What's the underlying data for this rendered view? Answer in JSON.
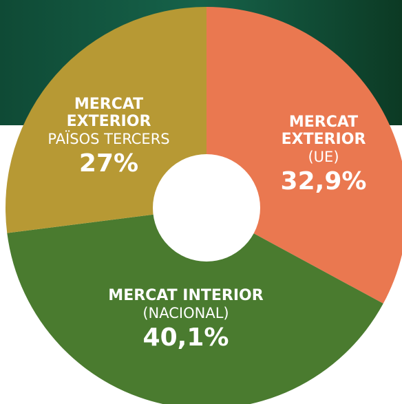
{
  "chart_data": {
    "type": "donut",
    "categories": [
      [
        "MERCAT",
        "EXTERIOR"
      ],
      [
        "MERCAT INTERIOR"
      ],
      [
        "MERCAT",
        "EXTERIOR"
      ]
    ],
    "sublabels": [
      "(UE)",
      "(NACIONAL)",
      "PAÏSOS TERCERS"
    ],
    "values": [
      32.9,
      40.1,
      27
    ],
    "value_labels": [
      "32,9%",
      "40,1%",
      "27%"
    ],
    "colors": [
      "#ea7850",
      "#4a7b2f",
      "#b79934"
    ]
  }
}
